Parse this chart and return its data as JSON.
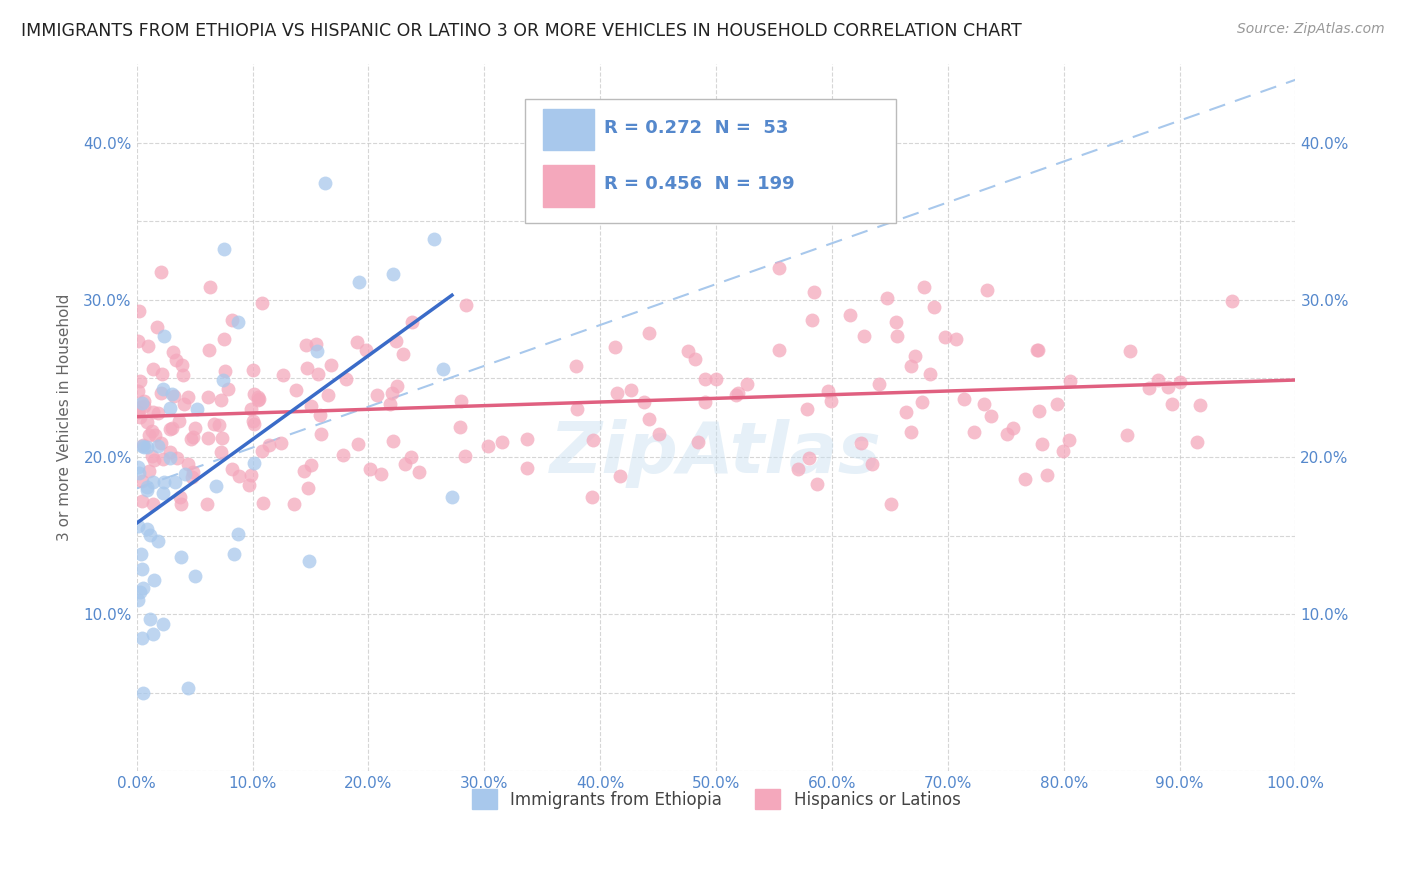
{
  "title": "IMMIGRANTS FROM ETHIOPIA VS HISPANIC OR LATINO 3 OR MORE VEHICLES IN HOUSEHOLD CORRELATION CHART",
  "source": "Source: ZipAtlas.com",
  "ylabel": "3 or more Vehicles in Household",
  "xlim": [
    0,
    1.0
  ],
  "ylim": [
    0.0,
    0.45
  ],
  "xticks": [
    0.0,
    0.1,
    0.2,
    0.3,
    0.4,
    0.5,
    0.6,
    0.7,
    0.8,
    0.9,
    1.0
  ],
  "xtick_labels": [
    "0.0%",
    "10.0%",
    "20.0%",
    "30.0%",
    "40.0%",
    "50.0%",
    "60.0%",
    "70.0%",
    "80.0%",
    "90.0%",
    "100.0%"
  ],
  "yticks": [
    0.0,
    0.05,
    0.1,
    0.15,
    0.2,
    0.25,
    0.3,
    0.35,
    0.4
  ],
  "ytick_labels": [
    "",
    "",
    "10.0%",
    "",
    "20.0%",
    "",
    "30.0%",
    "",
    "40.0%"
  ],
  "blue_R": 0.272,
  "blue_N": 53,
  "pink_R": 0.456,
  "pink_N": 199,
  "blue_color": "#A8C8EC",
  "pink_color": "#F4A8BC",
  "blue_line_color": "#3A6BC8",
  "pink_line_color": "#E06080",
  "dashed_line_color": "#A8C8EC",
  "tick_color": "#5588CC",
  "legend_blue_label": "Immigrants from Ethiopia",
  "legend_pink_label": "Hispanics or Latinos",
  "watermark": "ZipAtlas",
  "watermark_color": "#C8DFF0"
}
